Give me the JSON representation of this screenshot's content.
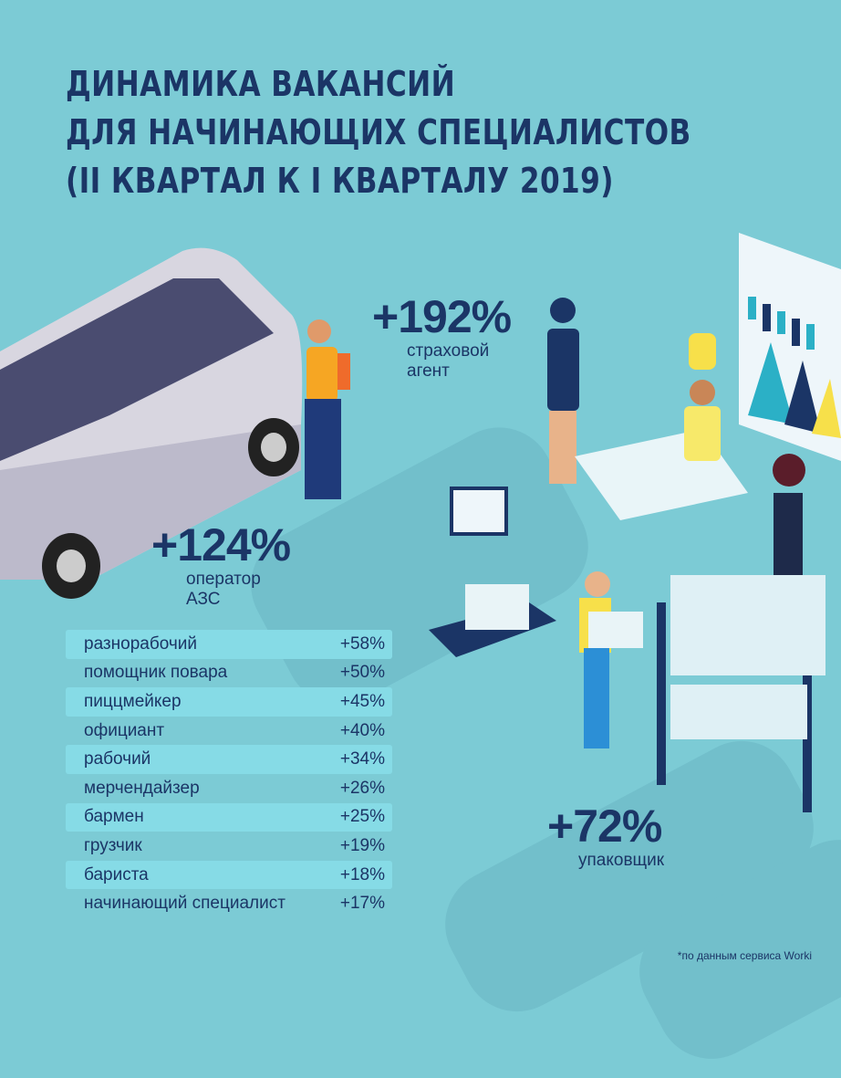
{
  "title_lines": [
    "ДИНАМИКА ВАКАНСИЙ",
    "ДЛЯ НАЧИНАЮЩИХ СПЕЦИАЛИСТОВ",
    "(II КВАРТАЛ К I КВАРТАЛУ 2019)"
  ],
  "highlights": [
    {
      "value": "+192%",
      "label_lines": [
        "страховой",
        "агент"
      ]
    },
    {
      "value": "+124%",
      "label_lines": [
        "оператор",
        "АЗС"
      ]
    },
    {
      "value": "+72%",
      "label_lines": [
        "упаковщик"
      ]
    }
  ],
  "table": [
    {
      "job": "разнорабочий",
      "change": "+58%"
    },
    {
      "job": "помощник повара",
      "change": "+50%"
    },
    {
      "job": "пиццмейкер",
      "change": "+45%"
    },
    {
      "job": "официант",
      "change": "+40%"
    },
    {
      "job": "рабочий",
      "change": "+34%"
    },
    {
      "job": "мерчендайзер",
      "change": "+26%"
    },
    {
      "job": "бармен",
      "change": "+25%"
    },
    {
      "job": "грузчик",
      "change": "+19%"
    },
    {
      "job": "бариста",
      "change": "+18%"
    },
    {
      "job": "начинающий специалист",
      "change": "+17%"
    }
  ],
  "footnote": "*по данным сервиса Worki",
  "colors": {
    "background": "#7ccbd5",
    "text": "#1b3566",
    "row_stripe": "#86dbe6"
  }
}
